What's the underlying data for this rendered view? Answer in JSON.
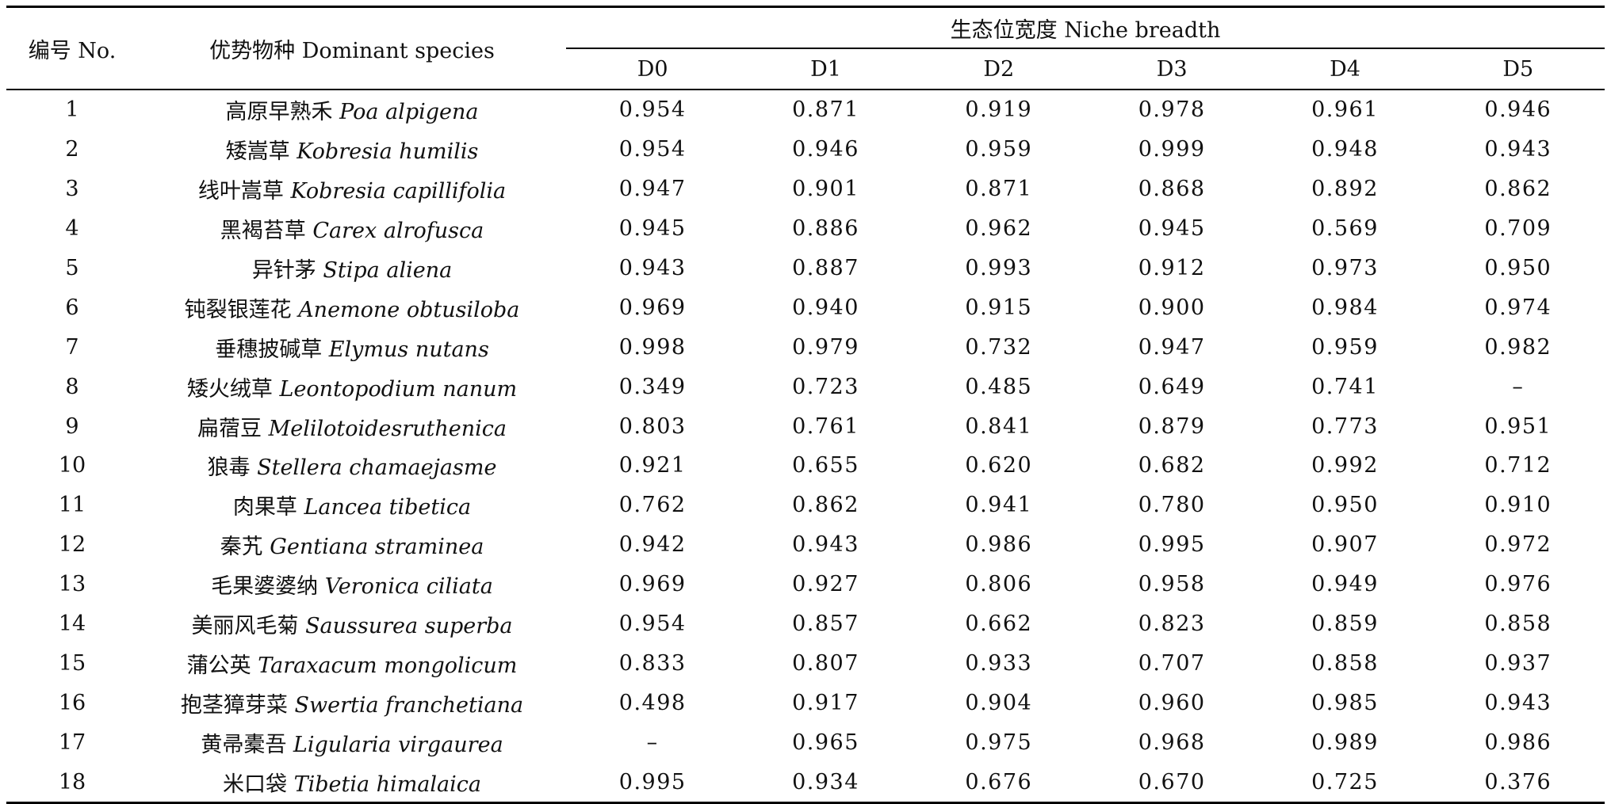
{
  "table": {
    "header": {
      "no": "编号 No.",
      "species": "优势物种 Dominant species",
      "group": "生态位宽度 Niche breadth",
      "cols": [
        "D0",
        "D1",
        "D2",
        "D3",
        "D4",
        "D5"
      ]
    },
    "rows": [
      {
        "no": "1",
        "cn": "高原早熟禾",
        "latin": "Poa alpigena",
        "d": [
          "0.954",
          "0.871",
          "0.919",
          "0.978",
          "0.961",
          "0.946"
        ]
      },
      {
        "no": "2",
        "cn": "矮嵩草",
        "latin": "Kobresia humilis",
        "d": [
          "0.954",
          "0.946",
          "0.959",
          "0.999",
          "0.948",
          "0.943"
        ]
      },
      {
        "no": "3",
        "cn": "线叶嵩草",
        "latin": "Kobresia capillifolia",
        "d": [
          "0.947",
          "0.901",
          "0.871",
          "0.868",
          "0.892",
          "0.862"
        ]
      },
      {
        "no": "4",
        "cn": "黑褐苔草",
        "latin": "Carex alrofusca",
        "d": [
          "0.945",
          "0.886",
          "0.962",
          "0.945",
          "0.569",
          "0.709"
        ]
      },
      {
        "no": "5",
        "cn": "异针茅",
        "latin": "Stipa aliena",
        "d": [
          "0.943",
          "0.887",
          "0.993",
          "0.912",
          "0.973",
          "0.950"
        ]
      },
      {
        "no": "6",
        "cn": "钝裂银莲花",
        "latin": "Anemone obtusiloba",
        "d": [
          "0.969",
          "0.940",
          "0.915",
          "0.900",
          "0.984",
          "0.974"
        ]
      },
      {
        "no": "7",
        "cn": "垂穗披碱草",
        "latin": "Elymus nutans",
        "d": [
          "0.998",
          "0.979",
          "0.732",
          "0.947",
          "0.959",
          "0.982"
        ]
      },
      {
        "no": "8",
        "cn": "矮火绒草",
        "latin": "Leontopodium nanum",
        "d": [
          "0.349",
          "0.723",
          "0.485",
          "0.649",
          "0.741",
          "–"
        ]
      },
      {
        "no": "9",
        "cn": "扁蓿豆",
        "latin": "Melilotoidesruthenica",
        "d": [
          "0.803",
          "0.761",
          "0.841",
          "0.879",
          "0.773",
          "0.951"
        ]
      },
      {
        "no": "10",
        "cn": "狼毒",
        "latin": "Stellera chamaejasme",
        "d": [
          "0.921",
          "0.655",
          "0.620",
          "0.682",
          "0.992",
          "0.712"
        ]
      },
      {
        "no": "11",
        "cn": "肉果草",
        "latin": "Lancea tibetica",
        "d": [
          "0.762",
          "0.862",
          "0.941",
          "0.780",
          "0.950",
          "0.910"
        ]
      },
      {
        "no": "12",
        "cn": "秦艽",
        "latin": "Gentiana straminea",
        "d": [
          "0.942",
          "0.943",
          "0.986",
          "0.995",
          "0.907",
          "0.972"
        ]
      },
      {
        "no": "13",
        "cn": "毛果婆婆纳",
        "latin": "Veronica ciliata",
        "d": [
          "0.969",
          "0.927",
          "0.806",
          "0.958",
          "0.949",
          "0.976"
        ]
      },
      {
        "no": "14",
        "cn": "美丽风毛菊",
        "latin": "Saussurea superba",
        "d": [
          "0.954",
          "0.857",
          "0.662",
          "0.823",
          "0.859",
          "0.858"
        ]
      },
      {
        "no": "15",
        "cn": "蒲公英",
        "latin": "Taraxacum mongolicum",
        "d": [
          "0.833",
          "0.807",
          "0.933",
          "0.707",
          "0.858",
          "0.937"
        ]
      },
      {
        "no": "16",
        "cn": "抱茎獐芽菜",
        "latin": "Swertia franchetiana",
        "d": [
          "0.498",
          "0.917",
          "0.904",
          "0.960",
          "0.985",
          "0.943"
        ]
      },
      {
        "no": "17",
        "cn": "黄帚橐吾",
        "latin": "Ligularia virgaurea",
        "d": [
          "–",
          "0.965",
          "0.975",
          "0.968",
          "0.989",
          "0.986"
        ]
      },
      {
        "no": "18",
        "cn": "米口袋",
        "latin": "Tibetia himalaica",
        "d": [
          "0.995",
          "0.934",
          "0.676",
          "0.670",
          "0.725",
          "0.376"
        ]
      }
    ]
  }
}
